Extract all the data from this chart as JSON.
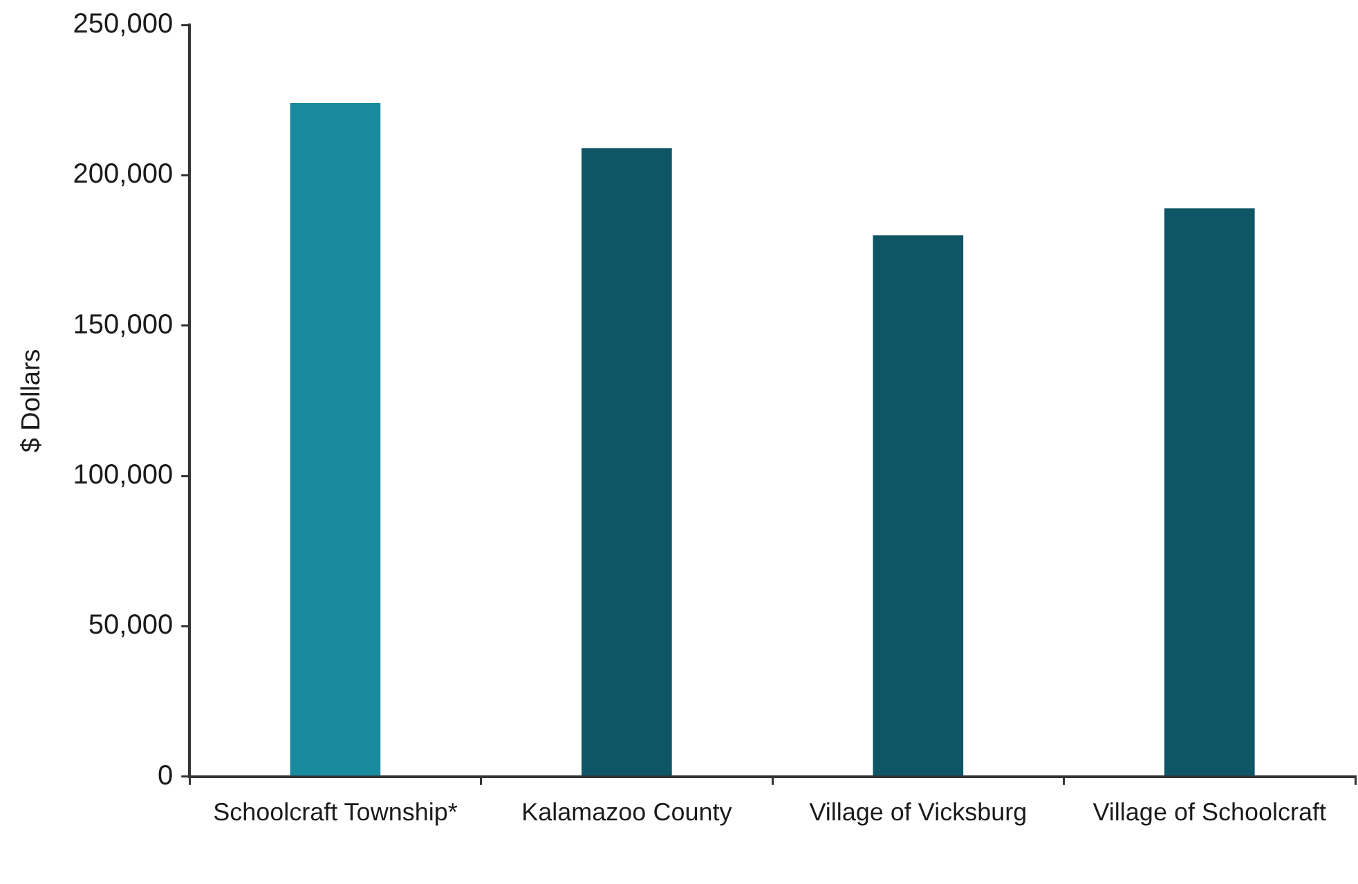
{
  "chart_data": {
    "type": "bar",
    "ylabel": "$ Dollars",
    "categories": [
      "Schoolcraft Township*",
      "Kalamazoo County",
      "Village of Vicksburg",
      "Village of Schoolcraft"
    ],
    "values": [
      224000,
      209000,
      180000,
      189000
    ],
    "colors": [
      "#1a8aa0",
      "#0e5566",
      "#0e5566",
      "#0e5566"
    ],
    "ylim": [
      0,
      250000
    ],
    "yticks": [
      0,
      {
        "value": 50000,
        "label": "50,000"
      },
      {
        "value": 100000,
        "label": "100,000"
      },
      {
        "value": 150000,
        "label": "150,000"
      },
      {
        "value": 200000,
        "label": "200,000"
      },
      {
        "value": 250000,
        "label": "250,000"
      }
    ],
    "grid": false
  }
}
